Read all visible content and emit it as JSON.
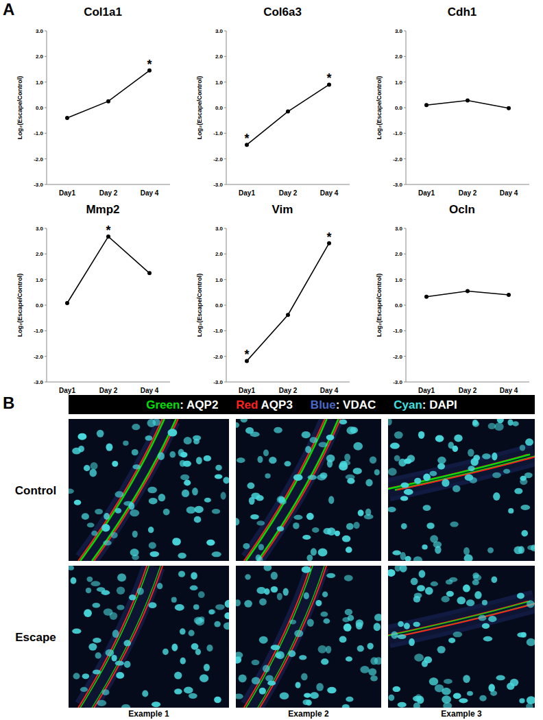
{
  "chart_data": [
    {
      "type": "line",
      "title": "Col1a1",
      "y_label": "Log₂(Escape/Control)",
      "categories": [
        "Day1",
        "Day 2",
        "Day 4"
      ],
      "values": [
        -0.4,
        0.25,
        1.45
      ],
      "color": "#000000",
      "marker": "circle",
      "ylim": [
        -3,
        3
      ],
      "yticks": [
        {
          "value": -3,
          "label": "-3.0"
        },
        {
          "value": -2,
          "label": "-2.0"
        },
        {
          "value": -1,
          "label": "-1.0"
        },
        {
          "value": 0,
          "label": "0.0"
        },
        {
          "value": 1,
          "label": "1.0"
        },
        {
          "value": 2,
          "label": "2.0"
        },
        {
          "value": 3,
          "label": "3.0"
        }
      ],
      "grid": false,
      "annotations": [
        {
          "category": "Day 4",
          "text": "*"
        }
      ]
    },
    {
      "type": "line",
      "title": "Col6a3",
      "y_label": "Log₂(Escape/Control)",
      "categories": [
        "Day1",
        "Day 2",
        "Day 4"
      ],
      "values": [
        -1.45,
        -0.15,
        0.9
      ],
      "color": "#000000",
      "marker": "circle",
      "ylim": [
        -3,
        3
      ],
      "yticks": [
        {
          "value": -3,
          "label": "-3.0"
        },
        {
          "value": -2,
          "label": "-2.0"
        },
        {
          "value": -1,
          "label": "-1.0"
        },
        {
          "value": 0,
          "label": "0.0"
        },
        {
          "value": 1,
          "label": "1.0"
        },
        {
          "value": 2,
          "label": "2.0"
        },
        {
          "value": 3,
          "label": "3.0"
        }
      ],
      "grid": false,
      "annotations": [
        {
          "category": "Day1",
          "text": "*"
        },
        {
          "category": "Day 4",
          "text": "*"
        }
      ]
    },
    {
      "type": "line",
      "title": "Cdh1",
      "y_label": "Log₂(Escape/Control)",
      "categories": [
        "Day1",
        "Day 2",
        "Day 4"
      ],
      "values": [
        0.1,
        0.28,
        -0.02
      ],
      "color": "#000000",
      "marker": "circle",
      "ylim": [
        -3,
        3
      ],
      "yticks": [
        {
          "value": -3,
          "label": "-3.0"
        },
        {
          "value": -2,
          "label": "-2.0"
        },
        {
          "value": -1,
          "label": "-1.0"
        },
        {
          "value": 0,
          "label": "0.0"
        },
        {
          "value": 1,
          "label": "1.0"
        },
        {
          "value": 2,
          "label": "2.0"
        },
        {
          "value": 3,
          "label": "3.0"
        }
      ],
      "grid": false,
      "annotations": []
    },
    {
      "type": "line",
      "title": "Mmp2",
      "y_label": "Log₂(Escape/Control)",
      "categories": [
        "Day1",
        "Day 2",
        "Day 4"
      ],
      "values": [
        0.08,
        2.68,
        1.25
      ],
      "color": "#000000",
      "marker": "circle",
      "ylim": [
        -3,
        3
      ],
      "yticks": [
        {
          "value": -3,
          "label": "-3.0"
        },
        {
          "value": -2,
          "label": "-2.0"
        },
        {
          "value": -1,
          "label": "-1.0"
        },
        {
          "value": 0,
          "label": "0.0"
        },
        {
          "value": 1,
          "label": "1.0"
        },
        {
          "value": 2,
          "label": "2.0"
        },
        {
          "value": 3,
          "label": "3.0"
        }
      ],
      "grid": false,
      "annotations": [
        {
          "category": "Day 2",
          "text": "*"
        }
      ]
    },
    {
      "type": "line",
      "title": "Vim",
      "y_label": "Log₂(Escape/Control)",
      "categories": [
        "Day1",
        "Day 2",
        "Day 4"
      ],
      "values": [
        -2.18,
        -0.38,
        2.42
      ],
      "color": "#000000",
      "marker": "circle",
      "ylim": [
        -3,
        3
      ],
      "yticks": [
        {
          "value": -3,
          "label": "-3.0"
        },
        {
          "value": -2,
          "label": "-2.0"
        },
        {
          "value": -1,
          "label": "-1.0"
        },
        {
          "value": 0,
          "label": "0.0"
        },
        {
          "value": 1,
          "label": "1.0"
        },
        {
          "value": 2,
          "label": "2.0"
        },
        {
          "value": 3,
          "label": "3.0"
        }
      ],
      "grid": false,
      "annotations": [
        {
          "category": "Day1",
          "text": "*"
        },
        {
          "category": "Day 4",
          "text": "*"
        }
      ]
    },
    {
      "type": "line",
      "title": "Ocln",
      "y_label": "Log₂(Escape/Control)",
      "categories": [
        "Day1",
        "Day 2",
        "Day 4"
      ],
      "values": [
        0.33,
        0.55,
        0.4
      ],
      "color": "#000000",
      "marker": "circle",
      "ylim": [
        -3,
        3
      ],
      "yticks": [
        {
          "value": -3,
          "label": "-3.0"
        },
        {
          "value": -2,
          "label": "-2.0"
        },
        {
          "value": -1,
          "label": "-1.0"
        },
        {
          "value": 0,
          "label": "0.0"
        },
        {
          "value": 1,
          "label": "1.0"
        },
        {
          "value": 2,
          "label": "2.0"
        },
        {
          "value": 3,
          "label": "3.0"
        }
      ],
      "grid": false,
      "annotations": []
    }
  ],
  "panel_labels": [
    "A",
    "B"
  ],
  "image_panel": {
    "legend": [
      {
        "key": "Green",
        "label": ": AQP2",
        "color": "#00e000"
      },
      {
        "key": "Red",
        "label": "  AQP3",
        "color": "#ff2020"
      },
      {
        "key": "Blue",
        "label": ": VDAC",
        "color": "#4a68c8"
      },
      {
        "key": "Cyan",
        "label": ":  DAPI",
        "color": "#40e0e0"
      }
    ],
    "rows": [
      "Control",
      "Escape"
    ],
    "columns": [
      "Example 1",
      "Example 2",
      "Example 3"
    ]
  }
}
